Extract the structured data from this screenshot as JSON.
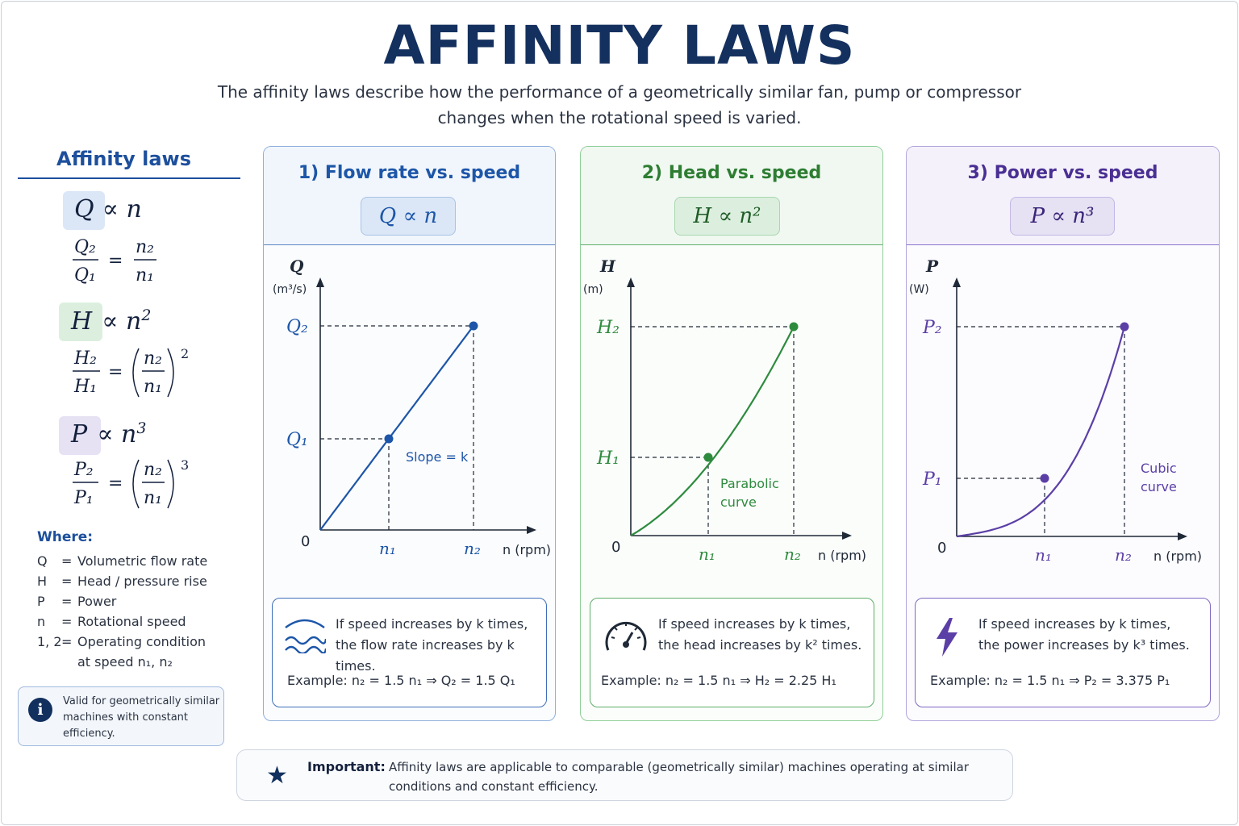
{
  "title": "AFFINITY LAWS",
  "subtitle": "The affinity laws describe how the performance of a geometrically similar fan, pump or compressor changes when the rotational speed is varied.",
  "left_panel": {
    "heading": "Affinity laws",
    "laws": [
      {
        "symbol": "Q",
        "rel": "∝ n",
        "power": "",
        "ratio_num": "Q₂",
        "ratio_den": "Q₁",
        "rhs_num": "n₂",
        "rhs_den": "n₁",
        "exponent": "",
        "tag_color": "#dbe7f6"
      },
      {
        "symbol": "H",
        "rel": "∝ n",
        "power": "2",
        "ratio_num": "H₂",
        "ratio_den": "H₁",
        "rhs_num": "n₂",
        "rhs_den": "n₁",
        "exponent": "2",
        "tag_color": "#dcefdf"
      },
      {
        "symbol": "P",
        "rel": "∝ n",
        "power": "3",
        "ratio_num": "P₂",
        "ratio_den": "P₁",
        "rhs_num": "n₂",
        "rhs_den": "n₁",
        "exponent": "3",
        "tag_color": "#e6e1f3"
      }
    ],
    "where_title": "Where:",
    "definitions": [
      {
        "sym": "Q",
        "eq": "=",
        "text": "Volumetric flow rate"
      },
      {
        "sym": "H",
        "eq": "=",
        "text": "Head / pressure rise"
      },
      {
        "sym": "P",
        "eq": "=",
        "text": "Power"
      },
      {
        "sym": "n",
        "eq": "=",
        "text": "Rotational speed"
      },
      {
        "sym": "1, 2",
        "eq": "=",
        "text": "Operating condition"
      }
    ],
    "def_continuation": "at speed n₁, n₂",
    "note": "Valid for geometrically similar machines with constant efficiency.",
    "note_icon": "i"
  },
  "cards": [
    {
      "title": "1)  Flow rate vs. speed",
      "formula": "Q ∝ n",
      "accent": "#1d56a8",
      "curve_label": [
        "Slope = k"
      ],
      "info_line1": "If speed increases by k times,",
      "info_line2": "the flow rate increases by k times.",
      "example": "Example:  n₂ = 1.5 n₁  ⇒  Q₂ = 1.5 Q₁",
      "icon": "wave-icon"
    },
    {
      "title": "2)  Head vs. speed",
      "formula": "H ∝ n²",
      "accent": "#2e8b3e",
      "curve_label": [
        "Parabolic",
        "curve"
      ],
      "info_line1": "If speed increases by k times,",
      "info_line2": "the head increases by k² times.",
      "example": "Example:  n₂ = 1.5 n₁  ⇒  H₂ = 2.25 H₁",
      "icon": "gauge-icon"
    },
    {
      "title": "3)  Power vs. speed",
      "formula": "P ∝ n³",
      "accent": "#5b3fa6",
      "curve_label": [
        "Cubic",
        "curve"
      ],
      "info_line1": "If speed increases by k times,",
      "info_line2": "the power increases by k³ times.",
      "example": "Example:  n₂ = 1.5 n₁  ⇒  P₂ = 3.375 P₁",
      "icon": "lightning-icon"
    }
  ],
  "chart_data": [
    {
      "type": "line",
      "ylabel": "Q",
      "yunit": "(m³/s)",
      "xlabel": "n (rpm)",
      "origin_label": "0",
      "x_ticks": [
        "n₁",
        "n₂"
      ],
      "y_ticks": [
        "Q₁",
        "Q₂"
      ],
      "points": [
        {
          "label": "n₁",
          "y_label": "Q₁"
        },
        {
          "label": "n₂",
          "y_label": "Q₂"
        }
      ],
      "relation": "linear",
      "exponent": 1
    },
    {
      "type": "line",
      "ylabel": "H",
      "yunit": "(m)",
      "xlabel": "n (rpm)",
      "origin_label": "0",
      "x_ticks": [
        "n₁",
        "n₂"
      ],
      "y_ticks": [
        "H₁",
        "H₂"
      ],
      "points": [
        {
          "label": "n₁",
          "y_label": "H₁"
        },
        {
          "label": "n₂",
          "y_label": "H₂"
        }
      ],
      "relation": "parabolic",
      "exponent": 2
    },
    {
      "type": "line",
      "ylabel": "P",
      "yunit": "(W)",
      "xlabel": "n (rpm)",
      "origin_label": "0",
      "x_ticks": [
        "n₁",
        "n₂"
      ],
      "y_ticks": [
        "P₁",
        "P₂"
      ],
      "points": [
        {
          "label": "n₁",
          "y_label": "P₁"
        },
        {
          "label": "n₂",
          "y_label": "P₂"
        }
      ],
      "relation": "cubic",
      "exponent": 3
    }
  ],
  "important": {
    "label": "Important:",
    "text": "Affinity laws are applicable to comparable (geometrically similar) machines operating at similar conditions and constant efficiency."
  }
}
